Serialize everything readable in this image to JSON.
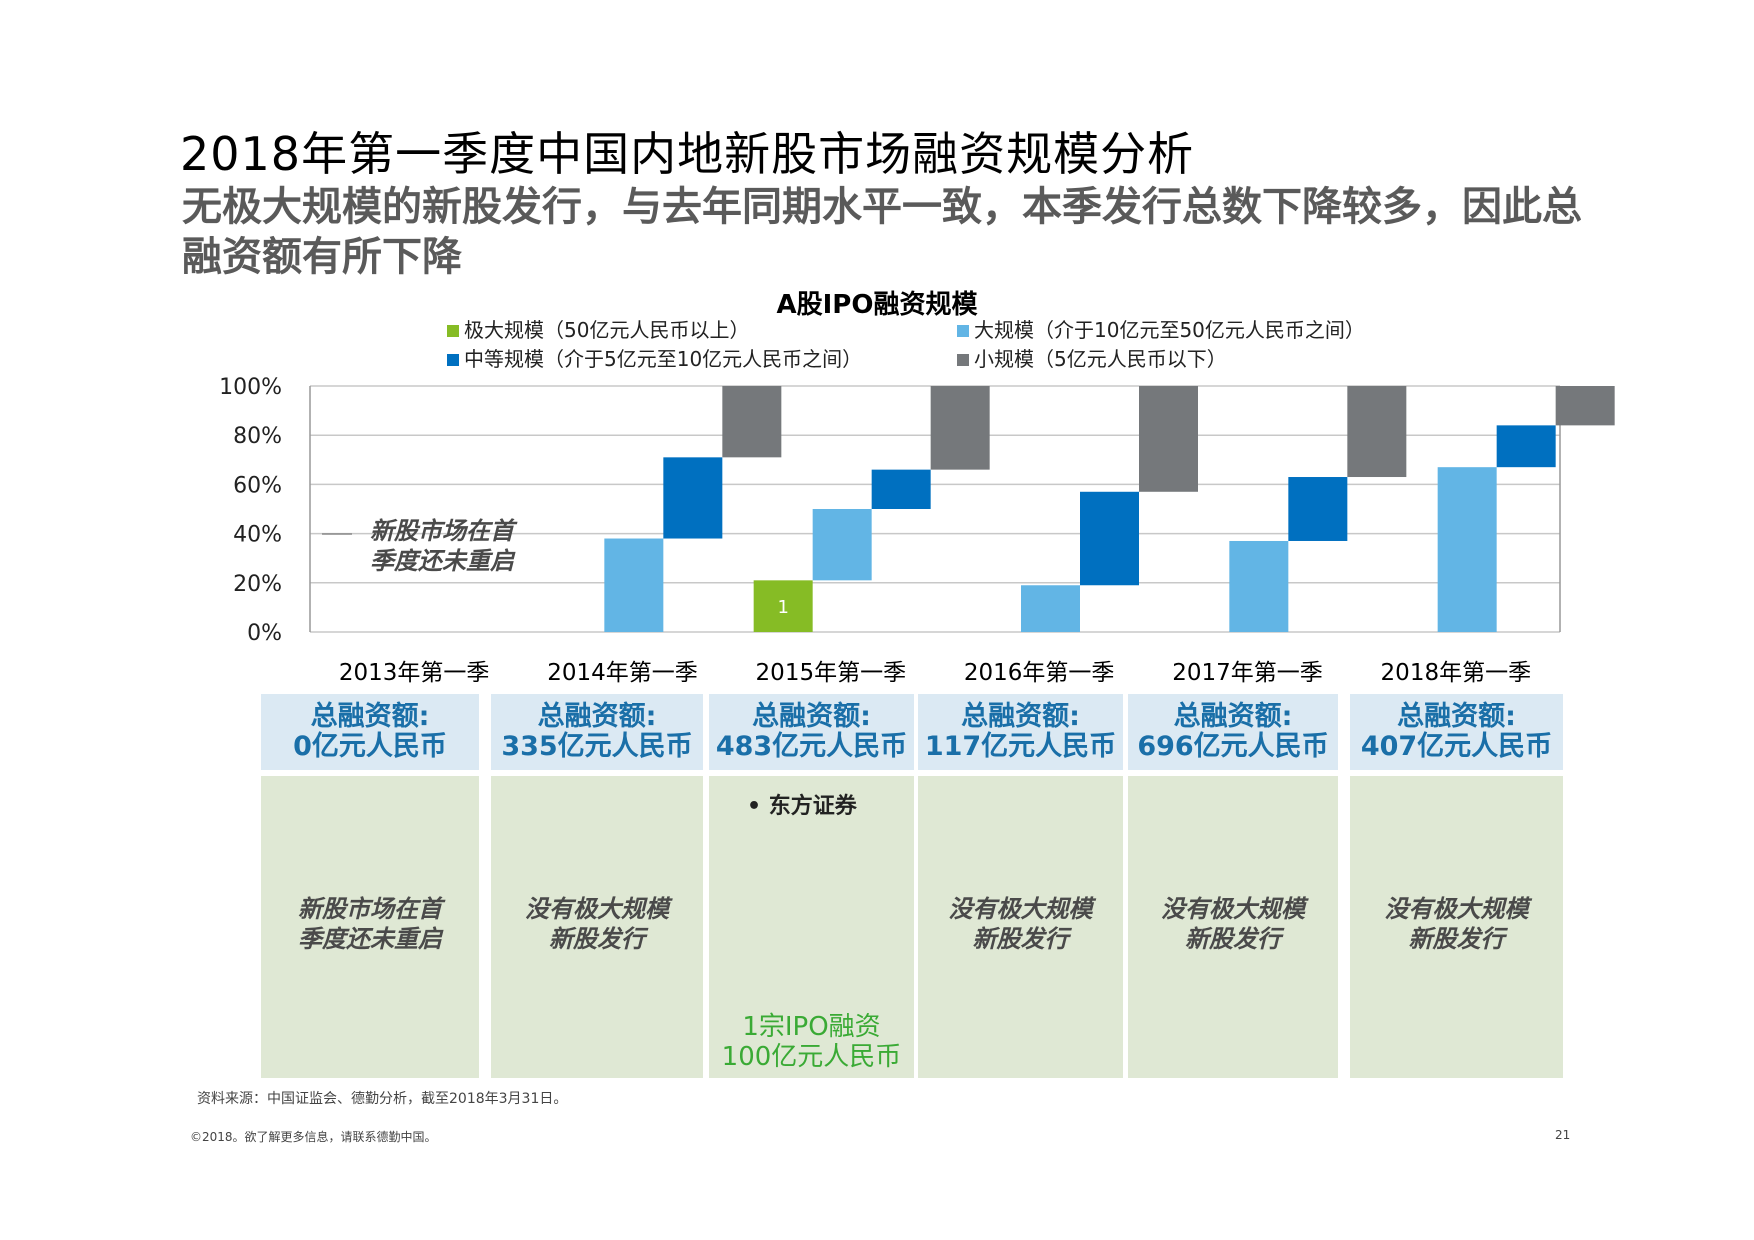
{
  "title": "2018年第一季度中国内地新股市场融资规模分析",
  "subtitle": "无极大规模的新股发行，与去年同期水平一致，本季发行总数下降较多，因此总融资额有所下降",
  "chart_data": {
    "type": "bar",
    "title": "A股IPO融资规模",
    "categories": [
      "2013年第一季",
      "2014年第一季",
      "2015年第一季",
      "2016年第一季",
      "2017年第一季",
      "2018年第一季"
    ],
    "ylim": [
      0,
      100
    ],
    "yticks": [
      "0%",
      "20%",
      "40%",
      "60%",
      "80%",
      "100%"
    ],
    "series": [
      {
        "name": "极大规模（50亿元人民币以上）",
        "color": "#86bc25",
        "values": [
          0,
          0,
          21,
          0,
          0,
          0
        ]
      },
      {
        "name": "大规模（介于10亿元至50亿元人民币之间）",
        "color": "#62b5e5",
        "values": [
          0,
          38,
          29,
          19,
          37,
          67
        ]
      },
      {
        "name": "中等规模（介于5亿元至10亿元人民币之间）",
        "color": "#0070c0",
        "values": [
          0,
          33,
          16,
          38,
          26,
          17
        ]
      },
      {
        "name": "小规模（5亿元人民币以下）",
        "color": "#75787b",
        "values": [
          0,
          29,
          34,
          43,
          37,
          16
        ]
      }
    ],
    "bar_labels": [
      {
        "category_index": 2,
        "series_index": 0,
        "text": "1"
      }
    ],
    "annotation": [
      "新股市场在首",
      "季度还未重启"
    ]
  },
  "amounts": [
    {
      "label": "总融资额:",
      "value": "0亿元人民币"
    },
    {
      "label": "总融资额:",
      "value": "335亿元人民币"
    },
    {
      "label": "总融资额:",
      "value": "483亿元人民币"
    },
    {
      "label": "总融资额:",
      "value": "117亿元人民币"
    },
    {
      "label": "总融资额:",
      "value": "696亿元人民币"
    },
    {
      "label": "总融资额:",
      "value": "407亿元人民币"
    }
  ],
  "details": [
    {
      "text": [
        "新股市场在首",
        "季度还未重启"
      ]
    },
    {
      "text": [
        "没有极大规模",
        "新股发行"
      ]
    },
    {
      "bullet": "东方证券",
      "note": [
        "1宗IPO融资",
        "100亿元人民币"
      ]
    },
    {
      "text": [
        "没有极大规模",
        "新股发行"
      ]
    },
    {
      "text": [
        "没有极大规模",
        "新股发行"
      ]
    },
    {
      "text": [
        "没有极大规模",
        "新股发行"
      ]
    }
  ],
  "bullet_symbol": "•",
  "source": "资料来源：中国证监会、德勤分析，截至2018年3月31日。",
  "footer": "©2018。欲了解更多信息，请联系德勤中国。",
  "page_number": "21"
}
